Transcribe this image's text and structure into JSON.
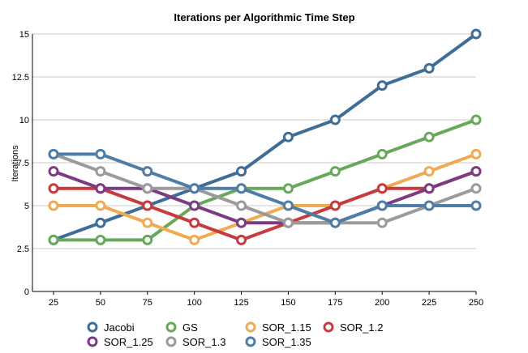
{
  "chart_data": {
    "type": "line",
    "title": "Iterations per Algorithmic Time Step",
    "xlabel": "",
    "ylabel": "Iterations",
    "x": [
      25,
      50,
      75,
      100,
      125,
      150,
      175,
      200,
      225,
      250
    ],
    "xticks": [
      "25",
      "50",
      "75",
      "100",
      "125",
      "150",
      "175",
      "200",
      "225",
      "250"
    ],
    "yticks": [
      "0",
      "2.5",
      "5",
      "7.5",
      "10",
      "12.5",
      "15"
    ],
    "ylim": [
      0,
      15
    ],
    "grid": true,
    "legend_position": "bottom",
    "series": [
      {
        "name": "Jacobi",
        "color": "#3e6e97",
        "values": [
          3,
          4,
          5,
          6,
          7,
          9,
          10,
          12,
          13,
          15
        ]
      },
      {
        "name": "GS",
        "color": "#67a85a",
        "values": [
          3,
          3,
          3,
          5,
          6,
          6,
          7,
          8,
          9,
          10
        ]
      },
      {
        "name": "SOR_1.15",
        "color": "#efaa52",
        "values": [
          5,
          5,
          4,
          3,
          4,
          5,
          5,
          6,
          7,
          8
        ]
      },
      {
        "name": "SOR_1.2",
        "color": "#c53b3f",
        "values": [
          6,
          6,
          5,
          4,
          3,
          4,
          5,
          6,
          6,
          7
        ]
      },
      {
        "name": "SOR_1.25",
        "color": "#7c3b82",
        "values": [
          7,
          6,
          6,
          5,
          4,
          4,
          4,
          5,
          6,
          7
        ]
      },
      {
        "name": "SOR_1.3",
        "color": "#9b9b9b",
        "values": [
          8,
          7,
          6,
          6,
          5,
          4,
          4,
          4,
          5,
          6
        ]
      },
      {
        "name": "SOR_1.35",
        "color": "#4e7ea6",
        "values": [
          8,
          8,
          7,
          6,
          6,
          5,
          4,
          5,
          5,
          5
        ]
      }
    ]
  }
}
